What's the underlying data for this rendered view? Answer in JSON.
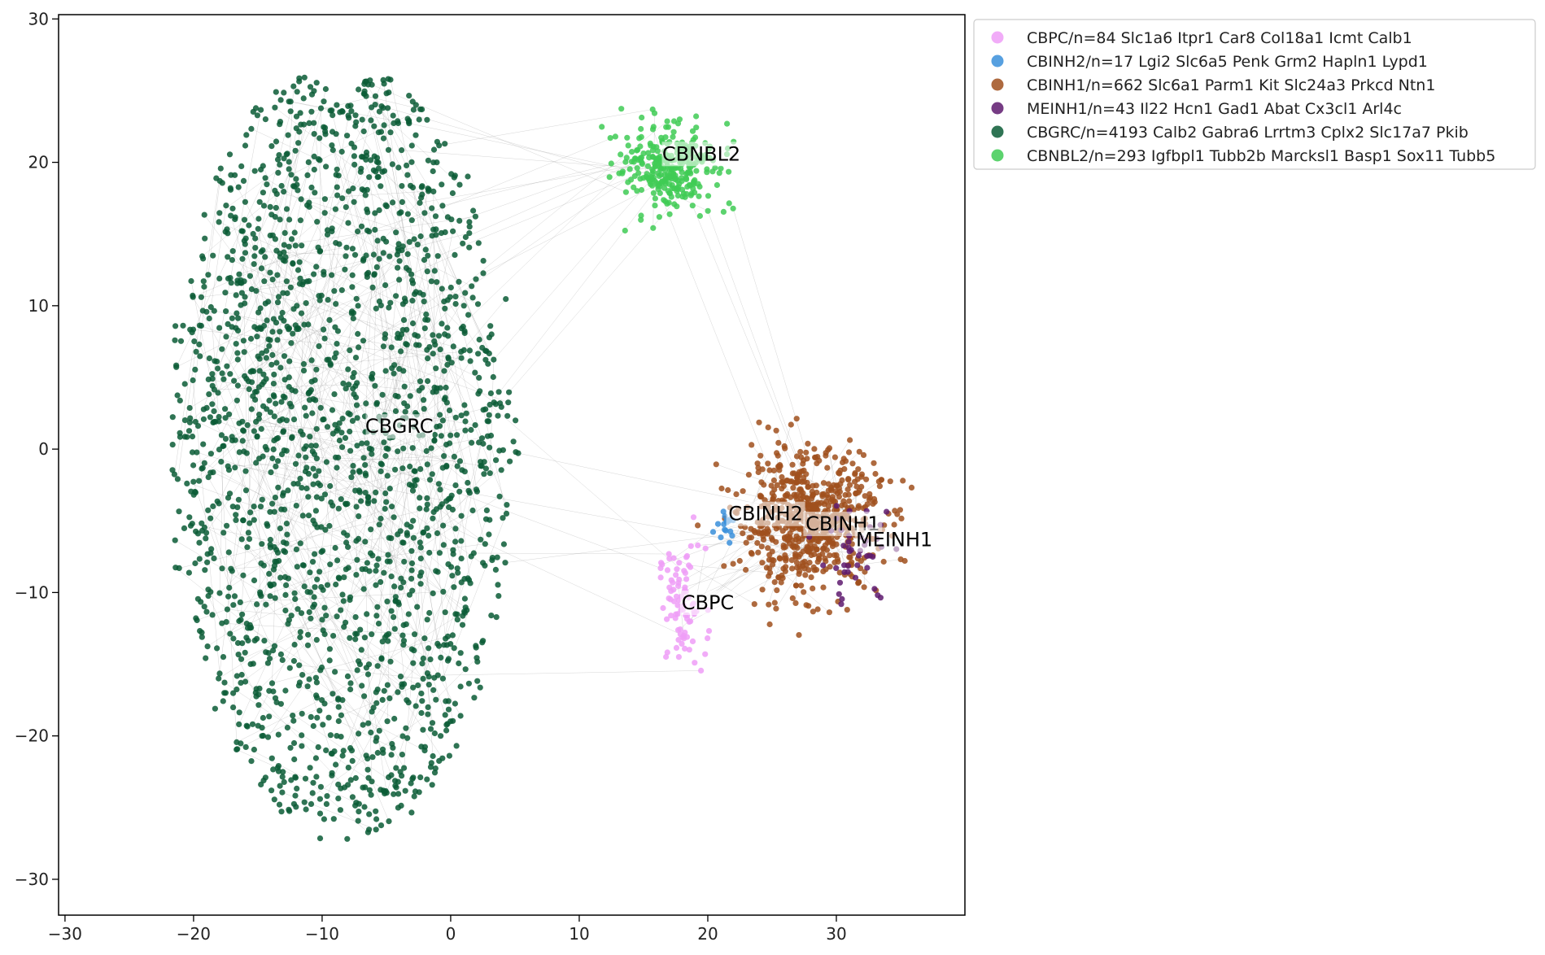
{
  "chart_data": {
    "type": "scatter",
    "title": "",
    "xlabel": "",
    "ylabel": "",
    "xlim": [
      -30.5,
      40
    ],
    "ylim": [
      -32.5,
      30.3
    ],
    "x_ticks": [
      -30,
      -20,
      -10,
      0,
      10,
      20,
      30
    ],
    "y_ticks": [
      -30,
      -20,
      -10,
      0,
      10,
      20,
      30
    ],
    "grid": false,
    "legend_placement": "outside upper right",
    "edges_color": "#888888",
    "series": [
      {
        "name": "CBPC/n=84 Slc1a6 Itpr1 Car8 Col18a1 Icmt Calb1",
        "label": "CBPC",
        "color": "#ef9ef7",
        "count": 84,
        "center": [
          18.0,
          -11.0
        ],
        "spread": [
          1.5,
          3.5
        ],
        "label_pos": [
          20,
          -11
        ]
      },
      {
        "name": "CBINH2/n=17 Lgi2 Slc6a5 Penk Grm2 Hapln1 Lypd1",
        "label": "CBINH2",
        "color": "#3a8fdb",
        "count": 17,
        "center": [
          21.3,
          -5.5
        ],
        "spread": [
          0.7,
          0.9
        ],
        "label_pos": [
          24.5,
          -4.8
        ]
      },
      {
        "name": "CBINH1/n=662 Slc6a1 Parm1 Kit Slc24a3 Prkcd Ntn1",
        "label": "CBINH1",
        "color": "#a0501d",
        "count": 662,
        "center": [
          28.0,
          -5.0
        ],
        "spread": [
          4.5,
          4.0
        ],
        "label_pos": [
          30.5,
          -5.5
        ]
      },
      {
        "name": "MEINH1/n=43 Il22 Hcn1 Gad1 Abat Cx3cl1 Arl4c",
        "label": "MEINH1",
        "color": "#5e1a6e",
        "count": 43,
        "center": [
          31.5,
          -7.5
        ],
        "spread": [
          2.5,
          3.0
        ],
        "label_pos": [
          34.5,
          -6.6
        ]
      },
      {
        "name": "CBGRC/n=4193 Calb2 Gabra6 Lrrtm3 Cplx2 Slc17a7 Pkib",
        "label": "CBGRC",
        "color": "#0a5c36",
        "count": 4193,
        "center": [
          -8.5,
          0.0
        ],
        "spread": [
          14.0,
          23.0
        ],
        "label_pos": [
          -4,
          1.3
        ]
      },
      {
        "name": "CBNBL2/n=293 Igfbpl1 Tubb2b Marcksl1 Basp1 Sox11 Tubb5",
        "label": "CBNBL2",
        "color": "#3fcb55",
        "count": 293,
        "center": [
          17.0,
          19.5
        ],
        "spread": [
          3.0,
          2.5
        ],
        "label_pos": [
          19.5,
          20.3
        ]
      }
    ]
  }
}
